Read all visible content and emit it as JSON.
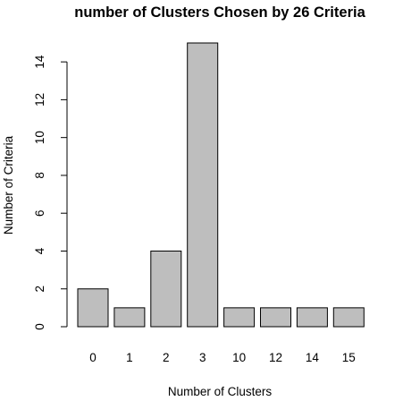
{
  "chart_data": {
    "type": "bar",
    "title": "number of Clusters Chosen by 26 Criteria",
    "xlabel": "Number of Clusters",
    "ylabel": "Number of Criteria",
    "categories": [
      "0",
      "1",
      "2",
      "3",
      "10",
      "12",
      "14",
      "15"
    ],
    "values": [
      2,
      1,
      4,
      15,
      1,
      1,
      1,
      1
    ],
    "ylim": [
      0,
      15
    ],
    "yticks": [
      0,
      2,
      4,
      6,
      8,
      10,
      12,
      14
    ],
    "grid": false,
    "legend": "none",
    "bar_color": "#bebebe",
    "edge_color": "#000000"
  }
}
